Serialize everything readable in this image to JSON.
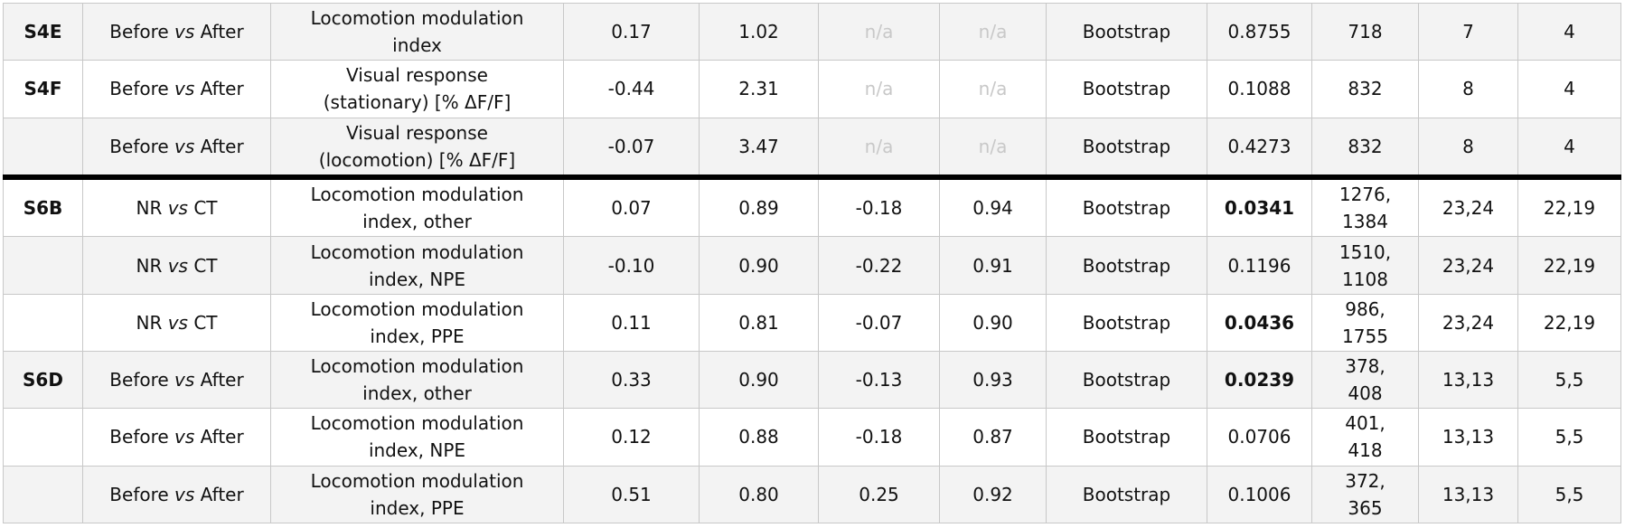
{
  "table": {
    "rows": [
      {
        "panel": "S4E",
        "cmp_a": "Before",
        "vs": "vs",
        "cmp_b": "After",
        "measure_1": "Locomotion modulation",
        "measure_2": "index",
        "c1": "0.17",
        "c2": "1.02",
        "c3": "n/a",
        "c4": "n/a",
        "test": "Bootstrap",
        "p": "0.8755",
        "n1": "718",
        "n1b": "",
        "n2": "7",
        "n3": "4"
      },
      {
        "panel": "S4F",
        "cmp_a": "Before",
        "vs": "vs",
        "cmp_b": "After",
        "measure_1": "Visual response",
        "measure_2": "(stationary) [% ΔF/F]",
        "c1": "-0.44",
        "c2": "2.31",
        "c3": "n/a",
        "c4": "n/a",
        "test": "Bootstrap",
        "p": "0.1088",
        "n1": "832",
        "n1b": "",
        "n2": "8",
        "n3": "4"
      },
      {
        "panel": "",
        "cmp_a": "Before",
        "vs": "vs",
        "cmp_b": "After",
        "measure_1": "Visual response",
        "measure_2": "(locomotion) [% ΔF/F]",
        "c1": "-0.07",
        "c2": "3.47",
        "c3": "n/a",
        "c4": "n/a",
        "test": "Bootstrap",
        "p": "0.4273",
        "n1": "832",
        "n1b": "",
        "n2": "8",
        "n3": "4"
      },
      {
        "panel": "S6B",
        "cmp_a": "NR",
        "vs": "vs",
        "cmp_b": "CT",
        "measure_1": "Locomotion modulation",
        "measure_2": "index, other",
        "c1": "0.07",
        "c2": "0.89",
        "c3": "-0.18",
        "c4": "0.94",
        "test": "Bootstrap",
        "p": "0.0341",
        "n1": "1276,",
        "n1b": "1384",
        "n2": "23,24",
        "n3": "22,19"
      },
      {
        "panel": "",
        "cmp_a": "NR",
        "vs": "vs",
        "cmp_b": "CT",
        "measure_1": "Locomotion modulation",
        "measure_2": "index, NPE",
        "c1": "-0.10",
        "c2": "0.90",
        "c3": "-0.22",
        "c4": "0.91",
        "test": "Bootstrap",
        "p": "0.1196",
        "n1": "1510,",
        "n1b": "1108",
        "n2": "23,24",
        "n3": "22,19"
      },
      {
        "panel": "",
        "cmp_a": "NR",
        "vs": "vs",
        "cmp_b": "CT",
        "measure_1": "Locomotion modulation",
        "measure_2": "index, PPE",
        "c1": "0.11",
        "c2": "0.81",
        "c3": "-0.07",
        "c4": "0.90",
        "test": "Bootstrap",
        "p": "0.0436",
        "n1": "986,",
        "n1b": "1755",
        "n2": "23,24",
        "n3": "22,19"
      },
      {
        "panel": "S6D",
        "cmp_a": "Before",
        "vs": "vs",
        "cmp_b": "After",
        "measure_1": "Locomotion modulation",
        "measure_2": "index, other",
        "c1": "0.33",
        "c2": "0.90",
        "c3": "-0.13",
        "c4": "0.93",
        "test": "Bootstrap",
        "p": "0.0239",
        "n1": "378,",
        "n1b": "408",
        "n2": "13,13",
        "n3": "5,5"
      },
      {
        "panel": "",
        "cmp_a": "Before",
        "vs": "vs",
        "cmp_b": "After",
        "measure_1": "Locomotion modulation",
        "measure_2": "index, NPE",
        "c1": "0.12",
        "c2": "0.88",
        "c3": "-0.18",
        "c4": "0.87",
        "test": "Bootstrap",
        "p": "0.0706",
        "n1": "401,",
        "n1b": "418",
        "n2": "13,13",
        "n3": "5,5"
      },
      {
        "panel": "",
        "cmp_a": "Before",
        "vs": "vs",
        "cmp_b": "After",
        "measure_1": "Locomotion modulation",
        "measure_2": "index, PPE",
        "c1": "0.51",
        "c2": "0.80",
        "c3": "0.25",
        "c4": "0.92",
        "test": "Bootstrap",
        "p": "0.1006",
        "n1": "372,",
        "n1b": "365",
        "n2": "13,13",
        "n3": "5,5"
      }
    ]
  }
}
